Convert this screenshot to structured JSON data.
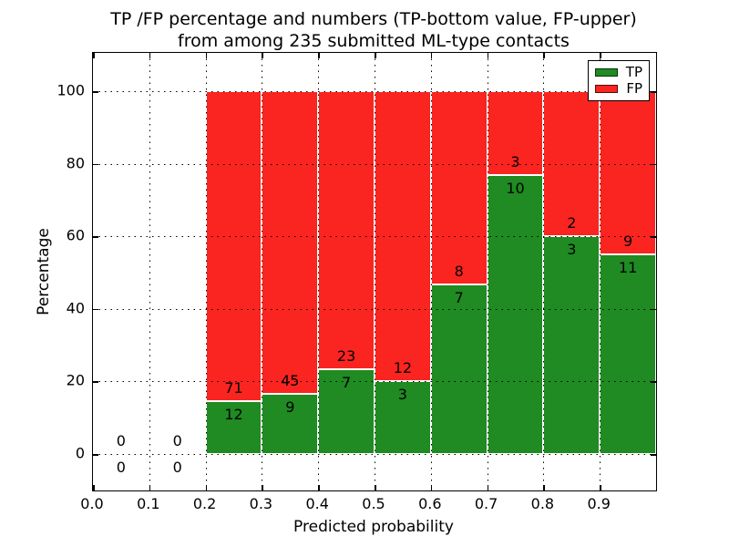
{
  "title": {
    "line1": "TP /FP percentage and numbers (TP-bottom value, FP-upper)",
    "line2": "from among 235 submitted ML-type contacts"
  },
  "axes": {
    "xlabel": "Predicted probability",
    "ylabel": "Percentage",
    "x_tick_values": [
      0.0,
      0.1,
      0.2,
      0.3,
      0.4,
      0.5,
      0.6,
      0.7,
      0.8,
      0.9
    ],
    "x_tick_labels": [
      "0.0",
      "0.1",
      "0.2",
      "0.3",
      "0.4",
      "0.5",
      "0.6",
      "0.7",
      "0.8",
      "0.9"
    ],
    "y_tick_values": [
      0,
      20,
      40,
      60,
      80,
      100
    ],
    "y_tick_labels": [
      "0",
      "20",
      "40",
      "60",
      "80",
      "100"
    ],
    "xlim": [
      0.0,
      1.0
    ],
    "ylim": [
      -10,
      110.5
    ],
    "grid": true,
    "grid_style": "dotted"
  },
  "legend": {
    "position": "upper right",
    "entries": [
      {
        "label": "TP",
        "color": "#1f8b22"
      },
      {
        "label": "FP",
        "color": "#fa2420"
      }
    ]
  },
  "chart_data": {
    "type": "bar",
    "stacked": true,
    "normalized_to_percent": 100,
    "title": "TP /FP percentage and numbers (TP-bottom value, FP-upper) from among 235 submitted ML-type contacts",
    "xlabel": "Predicted probability",
    "ylabel": "Percentage",
    "total_contacts": 235,
    "bin_width": 0.1,
    "bin_starts": [
      0.0,
      0.1,
      0.2,
      0.3,
      0.4,
      0.5,
      0.6,
      0.7,
      0.8,
      0.9
    ],
    "series": [
      {
        "name": "TP",
        "color": "#1f8b22",
        "counts": [
          0,
          0,
          12,
          9,
          7,
          3,
          7,
          10,
          3,
          11
        ]
      },
      {
        "name": "FP",
        "color": "#fa2420",
        "counts": [
          0,
          0,
          71,
          45,
          23,
          12,
          8,
          3,
          2,
          9
        ]
      }
    ],
    "tp_percent_of_bin": [
      0,
      0,
      14.46,
      16.67,
      23.33,
      20.0,
      46.67,
      76.92,
      60.0,
      55.0
    ],
    "annotation_note": "FP count drawn above TP/FP boundary, TP count drawn below boundary; zero bins annotated 0 over 0 at baseline"
  }
}
